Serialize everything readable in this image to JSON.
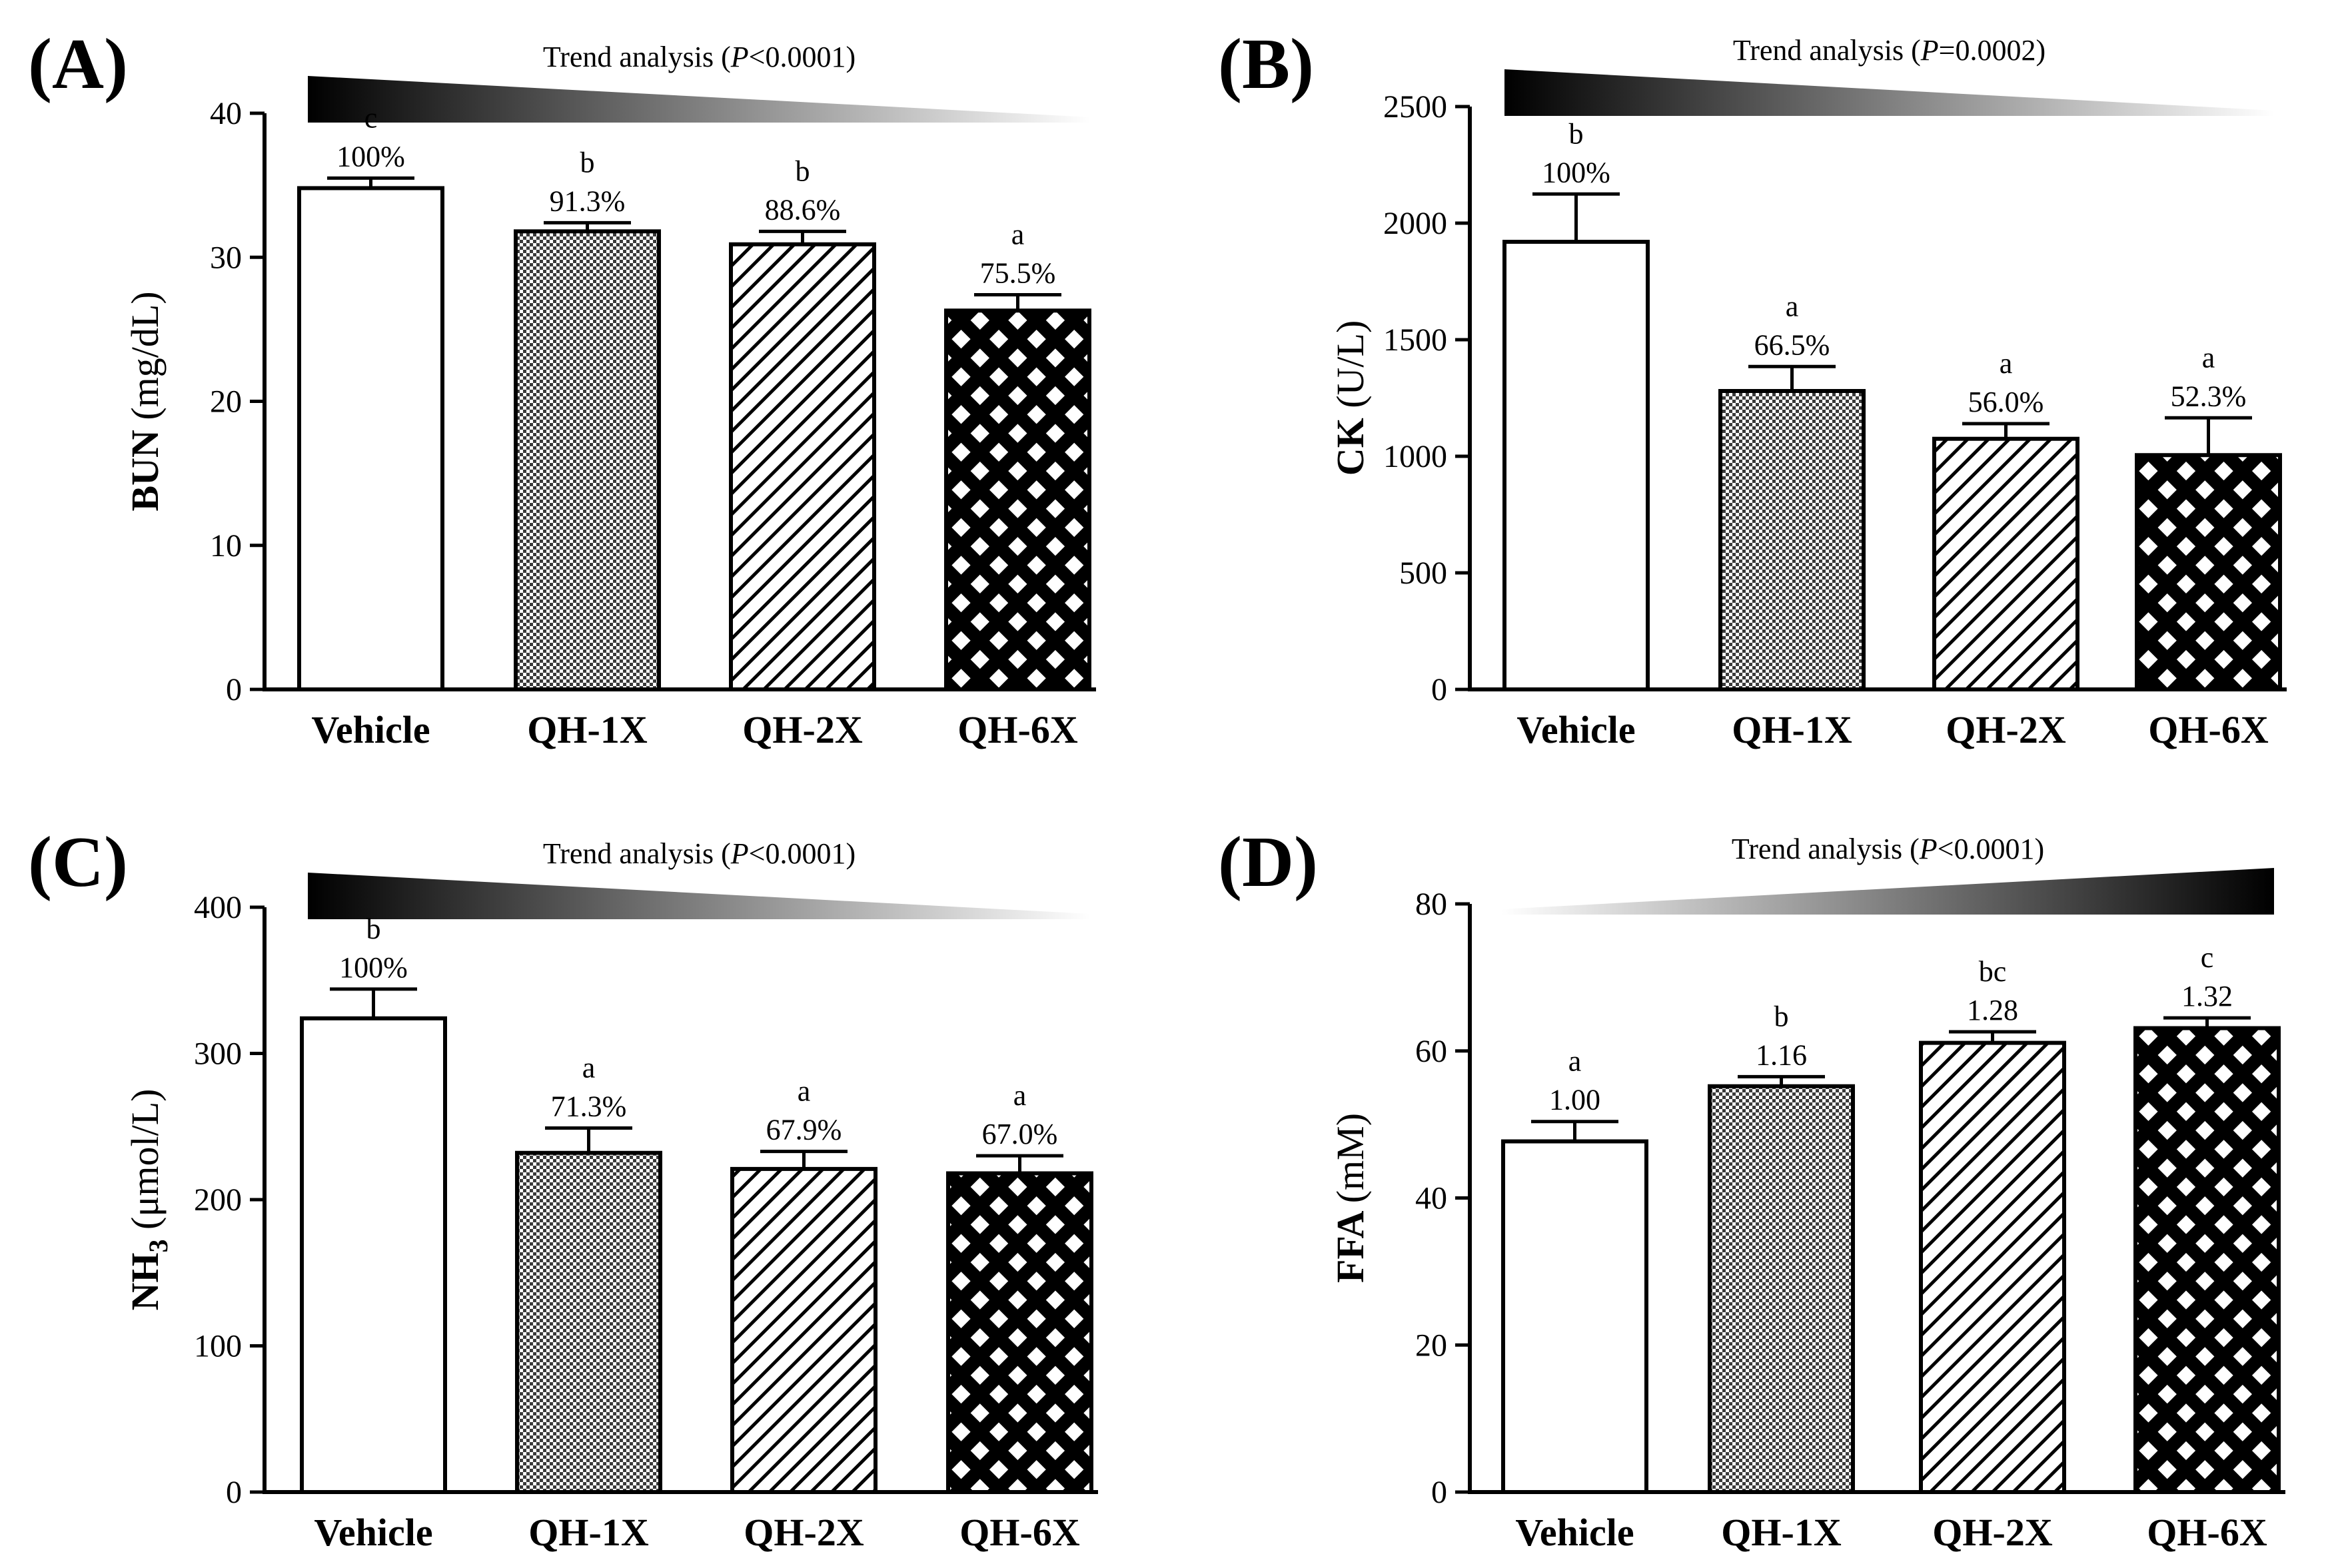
{
  "figure": {
    "panels": [
      "A",
      "B",
      "C",
      "D"
    ]
  },
  "chart_data": [
    {
      "type": "bar",
      "panel_label": "(A)",
      "ylabel": "BUN",
      "ylabel_unit": "(mg/dL)",
      "ylim": [
        0,
        40
      ],
      "yticks": [
        0,
        10,
        20,
        30,
        40
      ],
      "categories": [
        "Vehicle",
        "QH-1X",
        "QH-2X",
        "QH-6X"
      ],
      "values": [
        34.8,
        31.8,
        30.9,
        26.3
      ],
      "errors": [
        0.7,
        0.6,
        0.9,
        1.1
      ],
      "letters": [
        "c",
        "b",
        "b",
        "a"
      ],
      "labels": [
        "100%",
        "91.3%",
        "88.6%",
        "75.5%"
      ],
      "patterns": [
        "none",
        "check",
        "diag",
        "cross"
      ],
      "trend_prefix": "Trend analysis (",
      "trend_p": "P",
      "trend_suffix": "<0.0001)",
      "trend_direction": "decreasing"
    },
    {
      "type": "bar",
      "panel_label": "(B)",
      "ylabel": "CK",
      "ylabel_unit": "(U/L)",
      "ylim": [
        0,
        2500
      ],
      "yticks": [
        0,
        500,
        1000,
        1500,
        2000,
        2500
      ],
      "categories": [
        "Vehicle",
        "QH-1X",
        "QH-2X",
        "QH-6X"
      ],
      "values": [
        1920,
        1280,
        1075,
        1005
      ],
      "errors": [
        205,
        105,
        65,
        160
      ],
      "letters": [
        "b",
        "a",
        "a",
        "a"
      ],
      "labels": [
        "100%",
        "66.5%",
        "56.0%",
        "52.3%"
      ],
      "patterns": [
        "none",
        "check",
        "diag",
        "cross"
      ],
      "trend_prefix": "Trend analysis (",
      "trend_p": "P",
      "trend_suffix": "=0.0002)",
      "trend_direction": "decreasing"
    },
    {
      "type": "bar",
      "panel_label": "(C)",
      "ylabel": "NH",
      "ylabel_sub": "3",
      "ylabel_unit": "(μmol/L)",
      "ylim": [
        0,
        400
      ],
      "yticks": [
        0,
        100,
        200,
        300,
        400
      ],
      "categories": [
        "Vehicle",
        "QH-1X",
        "QH-2X",
        "QH-6X"
      ],
      "values": [
        324,
        232,
        221,
        218
      ],
      "errors": [
        20,
        17,
        12,
        12
      ],
      "letters": [
        "b",
        "a",
        "a",
        "a"
      ],
      "labels": [
        "100%",
        "71.3%",
        "67.9%",
        "67.0%"
      ],
      "patterns": [
        "none",
        "check",
        "diag",
        "cross"
      ],
      "trend_prefix": "Trend analysis (",
      "trend_p": "P",
      "trend_suffix": "<0.0001)",
      "trend_direction": "decreasing"
    },
    {
      "type": "bar",
      "panel_label": "(D)",
      "ylabel": "FFA",
      "ylabel_unit": "(mM)",
      "ylim": [
        0,
        80
      ],
      "yticks": [
        0,
        20,
        40,
        60,
        80
      ],
      "categories": [
        "Vehicle",
        "QH-1X",
        "QH-2X",
        "QH-6X"
      ],
      "values": [
        47.7,
        55.2,
        61.1,
        63.1
      ],
      "errors": [
        2.7,
        1.3,
        1.5,
        1.4
      ],
      "letters": [
        "a",
        "b",
        "bc",
        "c"
      ],
      "labels": [
        "1.00",
        "1.16",
        "1.28",
        "1.32"
      ],
      "patterns": [
        "none",
        "check",
        "diag",
        "cross"
      ],
      "trend_prefix": "Trend analysis (",
      "trend_p": "P",
      "trend_suffix": "<0.0001)",
      "trend_direction": "increasing"
    }
  ]
}
